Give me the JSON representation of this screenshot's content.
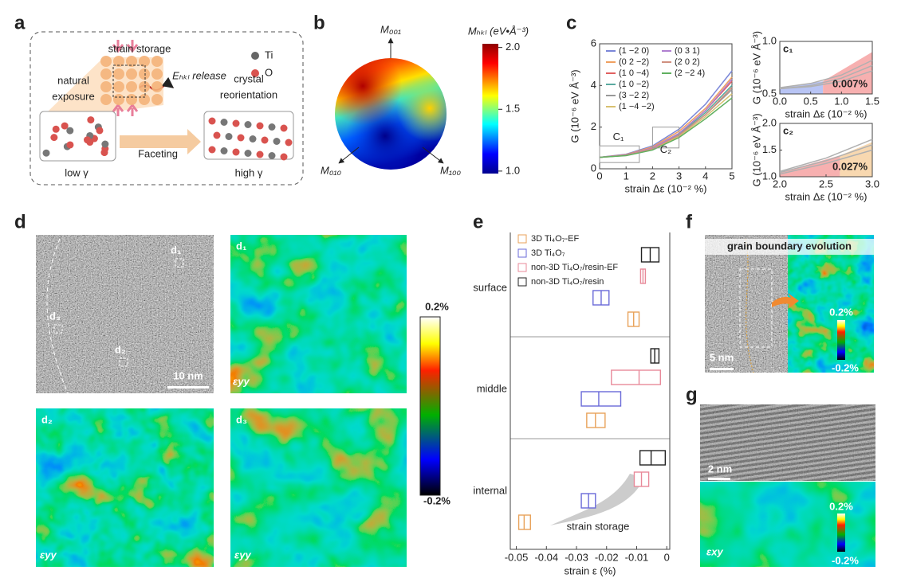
{
  "panel_labels": {
    "a": "a",
    "b": "b",
    "c": "c",
    "d": "d",
    "e": "e",
    "f": "f",
    "g": "g"
  },
  "panel_a": {
    "strain_storage": "strain storage",
    "release": "Eₕₖₗ release",
    "ti": "Ti",
    "o": "O",
    "natural_exposure": [
      "natural",
      "exposure"
    ],
    "crystal_reorientation": [
      "crystal",
      "reorientation"
    ],
    "faceting": "Faceting",
    "low": "low γ",
    "high": "high γ"
  },
  "panel_b": {
    "axes": [
      "M₀₀₁",
      "M₀₁₀",
      "M₁₀₀"
    ],
    "colorbar": {
      "title": "Mₕₖₗ (eV•Å⁻³)",
      "lim": [
        0.98,
        2.03
      ],
      "ticks": [
        {
          "value": 2,
          "label": "2.0"
        },
        1.5,
        {
          "value": 1,
          "label": "1.0"
        }
      ]
    }
  },
  "panel_d": {
    "markers": [
      "d₁",
      "d₂",
      "d₃"
    ],
    "titles": [
      "d₁",
      "d₂",
      "d₃"
    ],
    "scale_bar": "10 nm",
    "component": [
      "εyy",
      "εyy",
      "εyy"
    ],
    "colorbar": [
      "0.2%",
      "-0.2%"
    ]
  },
  "panel_f": {
    "title": "grain boundary evolution",
    "scale_bar": "5 nm",
    "colorbar": [
      "0.2%",
      "-0.2%"
    ]
  },
  "panel_g": {
    "scale_bar": "2 nm",
    "component": "εxy",
    "colorbar": [
      "0.2%",
      "-0.2%"
    ]
  },
  "chart_data": [
    {
      "type": "line",
      "ylabel": "G (10⁻⁶ eV Å⁻³)",
      "xlabel": "strain Δε (10⁻² %)",
      "x": [
        0,
        1,
        2,
        3,
        4,
        5
      ],
      "xlim": [
        0,
        5
      ],
      "ylim": [
        0,
        6
      ],
      "xticks": [
        0,
        1,
        2,
        3,
        4,
        5
      ],
      "yticks": [
        0,
        2,
        4,
        6
      ],
      "annotations": [
        "C₁",
        "C₂"
      ],
      "series": [
        {
          "name": "(1 −2 0)",
          "color": "#7a86d8",
          "values": [
            0.55,
            0.7,
            1.1,
            1.9,
            3.1,
            4.7
          ]
        },
        {
          "name": "(0 2 −2)",
          "color": "#f0a060",
          "values": [
            0.55,
            0.68,
            1.05,
            1.8,
            2.9,
            4.4
          ]
        },
        {
          "name": "(1 0 −4)",
          "color": "#e06060",
          "values": [
            0.55,
            0.67,
            1.0,
            1.7,
            2.8,
            4.2
          ]
        },
        {
          "name": "(1 0 −2)",
          "color": "#5aaaa0",
          "values": [
            0.55,
            0.66,
            0.98,
            1.65,
            2.7,
            4.0
          ]
        },
        {
          "name": "(3 −2 2)",
          "color": "#999999",
          "values": [
            0.55,
            0.65,
            0.95,
            1.6,
            2.6,
            3.8
          ]
        },
        {
          "name": "(1 −4 −2)",
          "color": "#d8c070",
          "values": [
            0.55,
            0.64,
            0.92,
            1.55,
            2.5,
            3.6
          ]
        },
        {
          "name": "(0 3 1)",
          "color": "#b080d0",
          "values": [
            0.55,
            0.66,
            1.0,
            1.7,
            2.8,
            4.3
          ]
        },
        {
          "name": "(2 0 2)",
          "color": "#d09080",
          "values": [
            0.55,
            0.65,
            0.96,
            1.62,
            2.6,
            3.9
          ]
        },
        {
          "name": "(2 −2 4)",
          "color": "#60b060",
          "values": [
            0.55,
            0.63,
            0.9,
            1.5,
            2.4,
            3.4
          ]
        }
      ]
    },
    {
      "type": "line",
      "title": "c₁",
      "ylabel": "G (10⁻⁶ eV Å⁻³)",
      "xlabel": "strain Δε (10⁻² %)",
      "x": [
        0,
        0.5,
        1,
        1.5
      ],
      "xlim": [
        0,
        1.5
      ],
      "ylim": [
        0.5,
        1
      ],
      "xticks": [
        {
          "value": 0,
          "label": "0.0"
        },
        0.5,
        {
          "value": 1,
          "label": "1.0"
        },
        1.5
      ],
      "yticks": [
        0.5,
        {
          "value": 1,
          "label": "1.0"
        }
      ],
      "annotation": "0.007%",
      "series": [
        {
          "color": "#b0b0b0",
          "values": [
            0.56,
            0.6,
            0.68,
            0.82
          ]
        },
        {
          "color": "#b0b0b0",
          "values": [
            0.55,
            0.58,
            0.65,
            0.77
          ]
        },
        {
          "color": "#b0b0b0",
          "values": [
            0.55,
            0.57,
            0.62,
            0.72
          ]
        }
      ]
    },
    {
      "type": "line",
      "title": "c₂",
      "ylabel": "G (10⁻⁶ eV Å⁻³)",
      "xlabel": "strain Δε (10⁻² %)",
      "x": [
        2,
        2.5,
        3
      ],
      "xlim": [
        2,
        3
      ],
      "ylim": [
        1,
        2
      ],
      "xticks": [
        {
          "value": 2,
          "label": "2.0"
        },
        2.5,
        {
          "value": 3,
          "label": "3.0"
        }
      ],
      "yticks": [
        {
          "value": 1,
          "label": "1.0"
        },
        1.5,
        {
          "value": 2,
          "label": "2.0"
        }
      ],
      "annotation": "0.027%",
      "series": [
        {
          "color": "#b0b0b0",
          "values": [
            1.1,
            1.35,
            1.7
          ]
        },
        {
          "color": "#b0b0b0",
          "values": [
            1.08,
            1.3,
            1.6
          ]
        },
        {
          "color": "#b0b0b0",
          "values": [
            1.05,
            1.25,
            1.5
          ]
        }
      ]
    },
    {
      "type": "box",
      "categories": [
        "surface",
        "middle",
        "internal"
      ],
      "xlabel": "strain ε (%)",
      "xlim": [
        -0.052,
        0.001
      ],
      "xticks": [
        -0.05,
        -0.04,
        -0.03,
        -0.02,
        -0.01,
        0
      ],
      "annotation": "strain storage",
      "series": [
        {
          "name": "3D Ti₄O₇-EF",
          "color": "#e8a25a",
          "q1": [
            -0.0129,
            -0.0266,
            -0.0492
          ],
          "median": [
            -0.011,
            -0.0237,
            -0.0474
          ],
          "q3": [
            -0.0092,
            -0.0205,
            -0.0453
          ]
        },
        {
          "name": "3D Ti₄O₇",
          "color": "#6a6ad8",
          "q1": [
            -0.0245,
            -0.0284,
            -0.0284
          ],
          "median": [
            -0.0218,
            -0.0226,
            -0.026
          ],
          "q3": [
            -0.0192,
            -0.0153,
            -0.0237
          ]
        },
        {
          "name": "non-3D Ti₄O₇/resin-EF",
          "color": "#e88a9a",
          "q1": [
            -0.0087,
            -0.0184,
            -0.0108
          ],
          "median": [
            -0.0079,
            -0.0092,
            -0.0084
          ],
          "q3": [
            -0.0071,
            -0.0021,
            -0.006
          ]
        },
        {
          "name": "non-3D Ti₄O₇/resin",
          "color": "#222222",
          "q1": [
            -0.0084,
            -0.0053,
            -0.0089
          ],
          "median": [
            -0.0055,
            -0.004,
            -0.0052
          ],
          "q3": [
            -0.0026,
            -0.0026,
            -0.0005
          ]
        }
      ]
    }
  ]
}
